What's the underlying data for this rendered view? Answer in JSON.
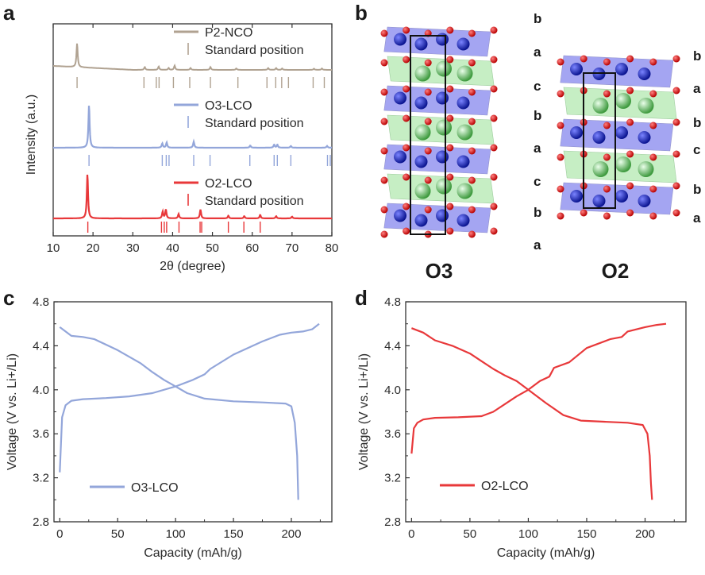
{
  "panels": {
    "a": "a",
    "b": "b",
    "c": "c",
    "d": "d"
  },
  "colors": {
    "p2": "#b0a291",
    "o3": "#93a6da",
    "o2": "#e8383a",
    "axis": "#333333"
  },
  "chart_data": [
    {
      "id": "a",
      "type": "line",
      "xlabel": "2θ (degree)",
      "ylabel": "Intensity (a.u.)",
      "xlim": [
        10,
        80
      ],
      "xticks": [
        "10",
        "20",
        "30",
        "40",
        "50",
        "60",
        "70",
        "80"
      ],
      "series": [
        {
          "name": "P2-NCO",
          "standard_label": "Standard position",
          "peaks": [
            [
              16,
              1.0
            ],
            [
              33,
              0.12
            ],
            [
              36.5,
              0.14
            ],
            [
              39,
              0.08
            ],
            [
              40.5,
              0.18
            ],
            [
              44.5,
              0.08
            ],
            [
              49.5,
              0.12
            ],
            [
              56,
              0.06
            ],
            [
              64,
              0.08
            ],
            [
              66,
              0.08
            ],
            [
              67.5,
              0.06
            ],
            [
              75.5,
              0.05
            ],
            [
              77.5,
              0.06
            ]
          ],
          "standard_positions": [
            16,
            32.8,
            35.9,
            36.6,
            40.2,
            44.3,
            49.5,
            56.4,
            63.7,
            65.9,
            67.4,
            69.1,
            75.3,
            78.1
          ]
        },
        {
          "name": "O3-LCO",
          "standard_label": "Standard position",
          "peaks": [
            [
              19,
              1.0
            ],
            [
              37.4,
              0.1
            ],
            [
              38.5,
              0.12
            ],
            [
              45.3,
              0.14
            ],
            [
              59.5,
              0.05
            ],
            [
              65.5,
              0.07
            ],
            [
              66.3,
              0.07
            ],
            [
              69.7,
              0.04
            ],
            [
              78.8,
              0.04
            ]
          ],
          "standard_positions": [
            19,
            37.4,
            38.4,
            39.1,
            45.3,
            49.4,
            59.4,
            65.5,
            66.3,
            69.7,
            78.9,
            79.6
          ]
        },
        {
          "name": "O2-LCO",
          "standard_label": "Standard position",
          "peaks": [
            [
              18.6,
              1.0
            ],
            [
              37.5,
              0.15
            ],
            [
              38.3,
              0.2
            ],
            [
              41.5,
              0.1
            ],
            [
              47,
              0.2
            ],
            [
              54,
              0.06
            ],
            [
              58,
              0.05
            ],
            [
              62,
              0.08
            ],
            [
              66,
              0.05
            ],
            [
              70,
              0.04
            ]
          ],
          "standard_positions": [
            18.7,
            37.2,
            37.9,
            38.5,
            41.6,
            46.9,
            47.3,
            54,
            57.9,
            62
          ]
        }
      ]
    },
    {
      "id": "c",
      "type": "line",
      "xlabel": "Capacity (mAh/g)",
      "ylabel": "Voltage (V vs. Li+/Li)",
      "xlim": [
        -5,
        235
      ],
      "ylim": [
        2.8,
        4.8
      ],
      "xticks": [
        0,
        50,
        100,
        150,
        200
      ],
      "yticks": [
        "2.8",
        "3.2",
        "3.6",
        "4.0",
        "4.4",
        "4.8"
      ],
      "legend": "O3-LCO",
      "series": [
        {
          "name": "charge",
          "x": [
            0,
            2,
            5,
            10,
            20,
            40,
            60,
            80,
            100,
            115,
            125,
            130,
            150,
            175,
            190,
            200,
            210,
            218,
            224
          ],
          "y": [
            3.25,
            3.75,
            3.86,
            3.9,
            3.915,
            3.925,
            3.94,
            3.97,
            4.03,
            4.09,
            4.14,
            4.19,
            4.32,
            4.44,
            4.5,
            4.52,
            4.53,
            4.55,
            4.6
          ]
        },
        {
          "name": "discharge",
          "x": [
            0,
            5,
            10,
            20,
            30,
            50,
            70,
            80,
            90,
            100,
            110,
            125,
            150,
            175,
            195,
            200,
            203,
            205,
            206
          ],
          "y": [
            4.57,
            4.53,
            4.49,
            4.48,
            4.46,
            4.36,
            4.24,
            4.16,
            4.09,
            4.03,
            3.97,
            3.92,
            3.895,
            3.885,
            3.875,
            3.85,
            3.7,
            3.4,
            3.0
          ]
        }
      ]
    },
    {
      "id": "d",
      "type": "line",
      "xlabel": "Capacity (mAh/g)",
      "ylabel": "Voltage (V vs. Li+/Li)",
      "xlim": [
        -5,
        235
      ],
      "ylim": [
        2.8,
        4.8
      ],
      "xticks": [
        0,
        50,
        100,
        150,
        200
      ],
      "yticks": [
        "2.8",
        "3.2",
        "3.6",
        "4.0",
        "4.4",
        "4.8"
      ],
      "legend": "O2-LCO",
      "series": [
        {
          "name": "charge",
          "x": [
            0,
            2,
            5,
            10,
            20,
            40,
            60,
            70,
            80,
            90,
            100,
            110,
            118,
            122,
            135,
            150,
            170,
            180,
            185,
            200,
            210,
            218
          ],
          "y": [
            3.42,
            3.65,
            3.7,
            3.73,
            3.745,
            3.75,
            3.76,
            3.8,
            3.87,
            3.94,
            4.0,
            4.08,
            4.12,
            4.2,
            4.25,
            4.38,
            4.46,
            4.48,
            4.53,
            4.57,
            4.59,
            4.6
          ]
        },
        {
          "name": "discharge",
          "x": [
            0,
            10,
            20,
            35,
            50,
            60,
            70,
            80,
            90,
            100,
            115,
            130,
            145,
            165,
            185,
            198,
            202,
            204,
            205,
            206
          ],
          "y": [
            4.56,
            4.52,
            4.45,
            4.4,
            4.33,
            4.26,
            4.19,
            4.13,
            4.08,
            4.0,
            3.88,
            3.77,
            3.72,
            3.71,
            3.7,
            3.68,
            3.6,
            3.4,
            3.15,
            3.0
          ]
        }
      ]
    }
  ],
  "structure": {
    "o3_name": "O3",
    "o2_name": "O2",
    "o3_layers": [
      "b",
      "a",
      "c",
      "b",
      "a",
      "c",
      "b",
      "a"
    ],
    "o2_layers": [
      "b",
      "a",
      "b",
      "c",
      "b",
      "a"
    ]
  }
}
